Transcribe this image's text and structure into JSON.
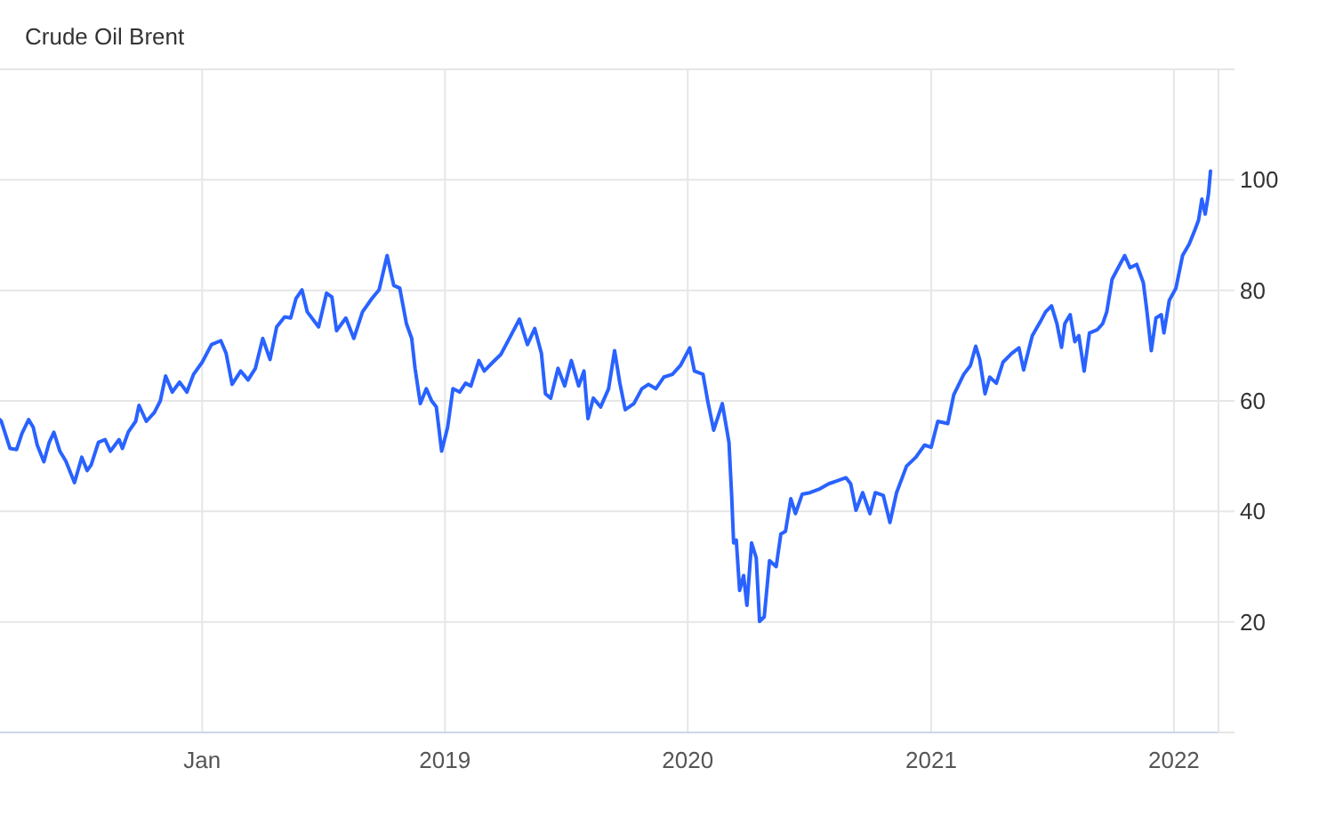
{
  "chart_data": {
    "type": "line",
    "title": "Crude Oil Brent",
    "color": "#2962ff",
    "grid": true,
    "xlim": [
      "2017-03-03",
      "2022-03-09"
    ],
    "xticks": [
      {
        "value": "2018-01-01",
        "label": "Jan"
      },
      {
        "value": "2019-01-01",
        "label": "2019"
      },
      {
        "value": "2020-01-01",
        "label": "2020"
      },
      {
        "value": "2021-01-01",
        "label": "2021"
      },
      {
        "value": "2022-01-01",
        "label": "2022"
      }
    ],
    "ylim": [
      0,
      120
    ],
    "yticks": [
      {
        "value": 0,
        "label": null
      },
      20,
      40,
      60,
      80,
      100,
      {
        "value": 120,
        "label": null
      }
    ],
    "x": [
      "2017-03-03",
      "2017-03-05",
      "2017-03-18",
      "2017-03-28",
      "2017-04-05",
      "2017-04-15",
      "2017-04-22",
      "2017-04-28",
      "2017-05-08",
      "2017-05-16",
      "2017-05-23",
      "2017-06-01",
      "2017-06-10",
      "2017-06-23",
      "2017-07-04",
      "2017-07-12",
      "2017-07-18",
      "2017-07-29",
      "2017-08-08",
      "2017-08-16",
      "2017-08-29",
      "2017-09-03",
      "2017-09-12",
      "2017-09-23",
      "2017-09-28",
      "2017-10-09",
      "2017-10-21",
      "2017-10-30",
      "2017-11-07",
      "2017-11-17",
      "2017-11-28",
      "2017-12-09",
      "2017-12-19",
      "2018-01-01",
      "2018-01-15",
      "2018-01-29",
      "2018-02-06",
      "2018-02-15",
      "2018-02-28",
      "2018-03-11",
      "2018-03-22",
      "2018-04-02",
      "2018-04-13",
      "2018-04-23",
      "2018-05-05",
      "2018-05-14",
      "2018-05-22",
      "2018-05-31",
      "2018-06-08",
      "2018-06-25",
      "2018-07-07",
      "2018-07-15",
      "2018-07-22",
      "2018-08-05",
      "2018-08-17",
      "2018-08-30",
      "2018-09-13",
      "2018-09-24",
      "2018-10-06",
      "2018-10-16",
      "2018-10-25",
      "2018-11-04",
      "2018-11-12",
      "2018-11-17",
      "2018-11-25",
      "2018-12-04",
      "2018-12-12",
      "2018-12-19",
      "2018-12-27",
      "2019-01-05",
      "2019-01-13",
      "2019-01-23",
      "2019-02-01",
      "2019-02-09",
      "2019-02-21",
      "2019-03-01",
      "2019-03-14",
      "2019-03-26",
      "2019-04-10",
      "2019-04-23",
      "2019-05-05",
      "2019-05-16",
      "2019-05-26",
      "2019-06-01",
      "2019-06-09",
      "2019-06-20",
      "2019-06-30",
      "2019-07-10",
      "2019-07-21",
      "2019-07-29",
      "2019-08-04",
      "2019-08-12",
      "2019-08-23",
      "2019-09-04",
      "2019-09-13",
      "2019-09-21",
      "2019-09-29",
      "2019-10-12",
      "2019-10-24",
      "2019-11-03",
      "2019-11-14",
      "2019-11-26",
      "2019-12-09",
      "2019-12-21",
      "2020-01-04",
      "2020-01-11",
      "2020-01-24",
      "2020-01-31",
      "2020-02-09",
      "2020-02-22",
      "2020-03-03",
      "2020-03-07",
      "2020-03-10",
      "2020-03-14",
      "2020-03-19",
      "2020-03-25",
      "2020-03-30",
      "2020-04-06",
      "2020-04-13",
      "2020-04-18",
      "2020-04-25",
      "2020-05-03",
      "2020-05-13",
      "2020-05-20",
      "2020-05-27",
      "2020-06-04",
      "2020-06-11",
      "2020-06-21",
      "2020-07-03",
      "2020-07-18",
      "2020-07-31",
      "2020-08-12",
      "2020-08-26",
      "2020-09-02",
      "2020-09-10",
      "2020-09-20",
      "2020-10-01",
      "2020-10-09",
      "2020-10-21",
      "2020-10-31",
      "2020-11-10",
      "2020-11-25",
      "2020-12-09",
      "2020-12-22",
      "2021-01-01",
      "2021-01-11",
      "2021-01-26",
      "2021-02-04",
      "2021-02-19",
      "2021-03-01",
      "2021-03-09",
      "2021-03-15",
      "2021-03-23",
      "2021-03-30",
      "2021-04-09",
      "2021-04-19",
      "2021-05-02",
      "2021-05-13",
      "2021-05-20",
      "2021-06-02",
      "2021-06-14",
      "2021-06-22",
      "2021-07-01",
      "2021-07-09",
      "2021-07-16",
      "2021-07-21",
      "2021-07-29",
      "2021-08-05",
      "2021-08-11",
      "2021-08-19",
      "2021-08-27",
      "2021-09-08",
      "2021-09-16",
      "2021-09-22",
      "2021-09-30",
      "2021-10-07",
      "2021-10-19",
      "2021-10-27",
      "2021-11-06",
      "2021-11-16",
      "2021-11-21",
      "2021-11-28",
      "2021-12-05",
      "2021-12-13",
      "2021-12-17",
      "2021-12-25",
      "2022-01-04",
      "2022-01-14",
      "2022-01-24",
      "2022-02-02",
      "2022-02-07",
      "2022-02-12",
      "2022-02-17",
      "2022-02-22",
      "2022-02-25"
    ],
    "values": [
      56.6,
      56.3,
      51.4,
      51.2,
      54.1,
      56.6,
      55.2,
      52,
      49,
      52.5,
      54.3,
      50.9,
      49.1,
      45.2,
      49.8,
      47.4,
      48.4,
      52.5,
      53,
      50.9,
      53,
      51.4,
      54.4,
      56.3,
      59.2,
      56.3,
      57.9,
      60,
      64.5,
      61.6,
      63.4,
      61.6,
      64.8,
      67,
      70.2,
      70.9,
      68.6,
      63,
      65.4,
      63.8,
      65.9,
      71.3,
      67.5,
      73.4,
      75.2,
      75,
      78.5,
      80.1,
      76.1,
      73.4,
      79.5,
      78.8,
      72.7,
      75,
      71.3,
      76.1,
      78.5,
      80.1,
      86.3,
      80.9,
      80.4,
      74,
      71.3,
      65.9,
      59.5,
      62.2,
      60,
      58.9,
      50.9,
      55.2,
      62.2,
      61.6,
      63.2,
      62.7,
      67.3,
      65.4,
      67,
      68.4,
      71.8,
      74.8,
      70.2,
      73.1,
      68.6,
      61.3,
      60.5,
      65.9,
      62.7,
      67.3,
      62.7,
      65.4,
      56.8,
      60.5,
      58.9,
      62.2,
      69.1,
      63.2,
      58.4,
      59.5,
      62.2,
      63,
      62.2,
      64.3,
      64.8,
      66.4,
      69.6,
      65.4,
      64.8,
      60,
      54.7,
      59.5,
      52.5,
      43,
      34.3,
      34.8,
      25.7,
      28.4,
      23,
      34.3,
      31.6,
      20.1,
      20.9,
      31.1,
      30,
      35.9,
      36.4,
      42.3,
      39.6,
      43.1,
      43.4,
      44.1,
      45,
      45.5,
      46.1,
      45,
      40.2,
      43.4,
      39.6,
      43.4,
      42.9,
      38,
      43.4,
      48.2,
      49.8,
      52,
      51.6,
      56.3,
      55.9,
      61.1,
      64.8,
      66.4,
      69.9,
      67.5,
      61.3,
      64.3,
      63.2,
      67,
      68.6,
      69.6,
      65.6,
      71.8,
      74.3,
      76.1,
      77.2,
      74,
      69.7,
      74,
      75.6,
      70.7,
      71.8,
      65.4,
      72.3,
      72.9,
      74,
      76.1,
      82,
      83.6,
      86.3,
      84.1,
      84.7,
      81.4,
      76.6,
      69.1,
      75,
      75.6,
      72.3,
      78.2,
      80.4,
      86.3,
      88.4,
      91.1,
      92.7,
      96.5,
      93.8,
      97.5,
      101.6
    ]
  }
}
